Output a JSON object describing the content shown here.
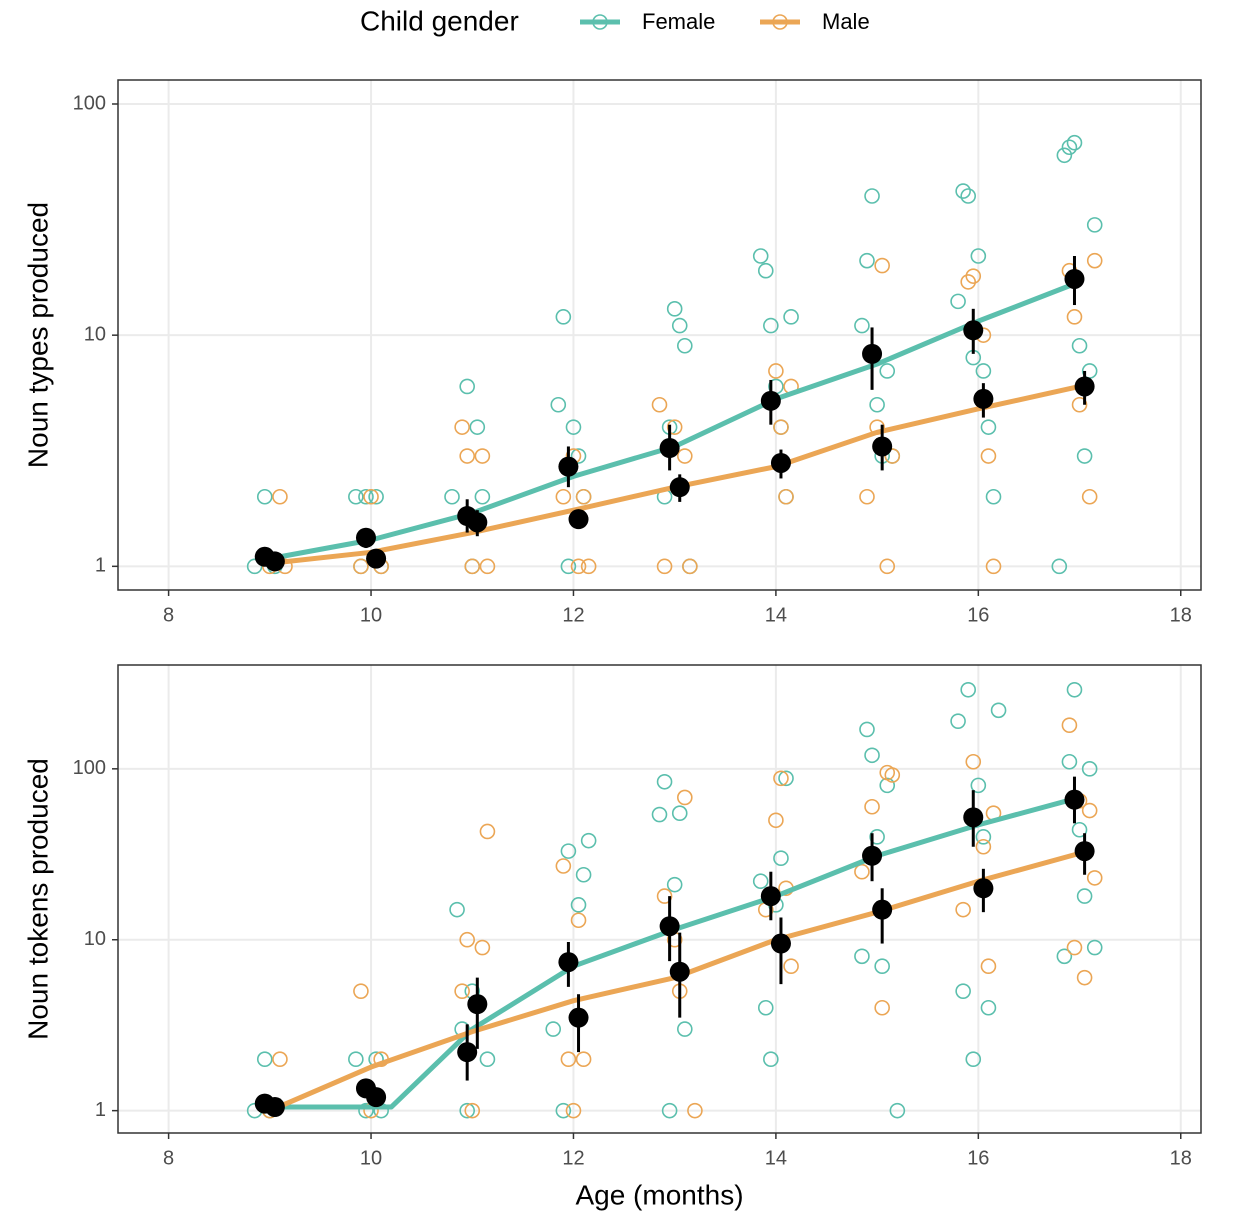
{
  "chart_data": [
    {
      "type": "scatter",
      "legend_title": "Child gender",
      "ylabel": "Noun types produced",
      "log_y": true,
      "grid": true,
      "xlim": [
        7.5,
        18.2
      ],
      "xticks": [
        8,
        10,
        12,
        14,
        16,
        18
      ],
      "ylim": [
        0.79,
        127
      ],
      "yticks": [
        1,
        10,
        100
      ],
      "series": [
        {
          "name": "Female",
          "color": "#5bbfad",
          "x": [
            8.85,
            8.95,
            9.05,
            9.85,
            9.9,
            9.95,
            10.05,
            10.1,
            10.8,
            10.95,
            11.0,
            11.05,
            11.1,
            11.85,
            11.9,
            11.95,
            12.0,
            12.05,
            12.1,
            12.9,
            12.95,
            13.0,
            13.05,
            13.1,
            13.15,
            13.85,
            13.9,
            13.95,
            14.0,
            14.05,
            14.1,
            14.15,
            14.85,
            14.9,
            14.95,
            15.0,
            15.05,
            15.1,
            15.15,
            15.8,
            15.85,
            15.9,
            15.95,
            16.0,
            16.05,
            16.1,
            16.15,
            16.8,
            16.85,
            16.9,
            16.95,
            17.0,
            17.05,
            17.1,
            17.15
          ],
          "values": [
            1,
            2,
            1,
            2,
            1,
            2,
            2,
            1,
            2,
            6,
            1,
            4,
            2,
            5,
            12,
            1,
            4,
            3,
            2,
            2,
            4,
            13,
            11,
            9,
            1,
            22,
            19,
            11,
            6,
            4,
            2,
            12,
            11,
            21,
            40,
            5,
            3,
            7,
            3,
            14,
            42,
            40,
            8,
            22,
            7,
            4,
            2,
            1,
            60,
            65,
            68,
            9,
            3,
            7,
            30
          ],
          "fit_x": [
            9,
            10,
            11,
            12,
            13,
            14,
            15,
            16,
            17
          ],
          "fit_values": [
            1.08,
            1.3,
            1.7,
            2.45,
            3.3,
            5.3,
            7.5,
            11.5,
            17
          ],
          "mean_x": [
            8.95,
            9.95,
            10.95,
            11.95,
            12.95,
            13.95,
            14.95,
            15.95,
            16.95
          ],
          "mean_values": [
            1.1,
            1.33,
            1.65,
            2.7,
            3.25,
            5.2,
            8.3,
            10.5,
            17.5
          ],
          "mean_low": [
            1.0,
            1.2,
            1.4,
            2.2,
            2.6,
            4.1,
            5.8,
            8.3,
            13.5
          ],
          "mean_high": [
            1.2,
            1.45,
            1.95,
            3.3,
            4.1,
            6.4,
            10.8,
            13,
            22
          ]
        },
        {
          "name": "Male",
          "color": "#eba655",
          "x": [
            9.0,
            9.1,
            9.15,
            9.9,
            10.0,
            10.1,
            10.9,
            10.95,
            11.0,
            11.1,
            11.15,
            11.9,
            12.0,
            12.05,
            12.1,
            12.15,
            12.85,
            12.9,
            13.0,
            13.1,
            13.15,
            14.0,
            14.05,
            14.1,
            14.15,
            14.9,
            15.0,
            15.05,
            15.1,
            15.15,
            15.9,
            15.95,
            16.05,
            16.1,
            16.15,
            16.9,
            16.95,
            17.0,
            17.05,
            17.1,
            17.15
          ],
          "values": [
            1,
            2,
            1,
            1,
            2,
            1,
            4,
            3,
            1,
            3,
            1,
            2,
            3,
            1,
            2,
            1,
            5,
            1,
            4,
            3,
            1,
            7,
            4,
            2,
            6,
            2,
            4,
            20,
            1,
            3,
            17,
            18,
            10,
            3,
            1,
            19,
            12,
            5,
            6,
            2,
            21
          ],
          "fit_x": [
            9,
            10,
            11,
            12,
            13,
            14,
            15,
            16,
            17
          ],
          "fit_values": [
            1.03,
            1.15,
            1.4,
            1.75,
            2.2,
            2.7,
            3.8,
            4.8,
            6.0
          ],
          "mean_x": [
            9.05,
            10.05,
            11.05,
            12.05,
            13.05,
            14.05,
            15.05,
            16.05,
            17.05
          ],
          "mean_values": [
            1.05,
            1.08,
            1.55,
            1.6,
            2.2,
            2.8,
            3.3,
            5.3,
            6.0
          ],
          "mean_low": [
            1.0,
            1.02,
            1.35,
            1.45,
            1.9,
            2.4,
            2.6,
            4.4,
            5
          ],
          "mean_high": [
            1.1,
            1.15,
            1.75,
            1.75,
            2.5,
            3.2,
            4.1,
            6.2,
            7
          ]
        }
      ]
    },
    {
      "type": "scatter",
      "ylabel": "Noun tokens produced",
      "xlabel": "Age (months)",
      "log_y": true,
      "grid": true,
      "xlim": [
        7.5,
        18.2
      ],
      "xticks": [
        8,
        10,
        12,
        14,
        16,
        18
      ],
      "ylim": [
        0.74,
        405
      ],
      "yticks": [
        1,
        10,
        100
      ],
      "series": [
        {
          "name": "Female",
          "color": "#5bbfad",
          "x": [
            8.85,
            8.95,
            9.0,
            9.85,
            9.95,
            10.05,
            10.1,
            10.85,
            10.9,
            10.95,
            11.0,
            11.15,
            11.8,
            11.9,
            11.95,
            12.05,
            12.1,
            12.15,
            12.85,
            12.9,
            12.95,
            13.0,
            13.05,
            13.1,
            13.85,
            13.9,
            13.95,
            14.0,
            14.05,
            14.1,
            14.85,
            14.9,
            14.95,
            15.0,
            15.05,
            15.1,
            15.2,
            15.8,
            15.85,
            15.9,
            15.95,
            16.0,
            16.05,
            16.1,
            16.2,
            16.85,
            16.9,
            16.95,
            17.0,
            17.05,
            17.1,
            17.15
          ],
          "values": [
            1,
            2,
            1,
            2,
            1,
            2,
            1,
            15,
            3,
            1,
            5,
            2,
            3,
            1,
            33,
            16,
            24,
            38,
            54,
            84,
            1,
            21,
            55,
            3,
            22,
            4,
            2,
            16,
            30,
            88,
            8,
            170,
            120,
            40,
            7,
            80,
            1,
            190,
            5,
            290,
            2,
            80,
            40,
            4,
            220,
            8,
            110,
            290,
            44,
            18,
            100,
            9
          ],
          "fit_x": [
            9,
            10,
            10.2,
            11,
            12,
            13,
            14,
            15,
            16,
            17
          ],
          "fit_values": [
            1.05,
            1.05,
            1.05,
            3.0,
            7,
            11.5,
            18,
            31,
            47,
            68
          ],
          "mean_x": [
            8.95,
            9.95,
            10.95,
            11.95,
            12.95,
            13.95,
            14.95,
            15.95,
            16.95
          ],
          "mean_values": [
            1.1,
            1.35,
            2.2,
            7.4,
            12,
            18,
            31,
            52,
            66
          ],
          "mean_low": [
            1.0,
            1.2,
            1.5,
            5.3,
            7.5,
            13,
            22,
            35,
            48
          ],
          "mean_high": [
            1.2,
            1.5,
            3.2,
            9.7,
            18,
            25,
            42,
            75,
            90
          ]
        },
        {
          "name": "Male",
          "color": "#eba655",
          "x": [
            9.0,
            9.1,
            9.9,
            10.0,
            10.1,
            10.9,
            10.95,
            11.0,
            11.1,
            11.15,
            11.9,
            11.95,
            12.0,
            12.05,
            12.1,
            12.9,
            13.0,
            13.05,
            13.1,
            13.2,
            13.9,
            14.0,
            14.05,
            14.1,
            14.15,
            14.85,
            14.95,
            15.05,
            15.1,
            15.15,
            15.85,
            15.95,
            16.05,
            16.1,
            16.15,
            16.9,
            16.95,
            17.0,
            17.05,
            17.1,
            17.15
          ],
          "values": [
            1,
            2,
            5,
            1,
            2,
            5,
            10,
            1,
            9,
            43,
            27,
            2,
            1,
            13,
            2,
            18,
            10,
            5,
            68,
            1,
            15,
            50,
            88,
            20,
            7,
            25,
            60,
            4,
            95,
            92,
            15,
            110,
            35,
            7,
            55,
            180,
            9,
            65,
            6,
            57,
            23
          ],
          "fit_x": [
            9,
            10,
            11,
            12,
            13,
            14,
            15,
            16,
            17
          ],
          "fit_values": [
            1.0,
            1.8,
            2.9,
            4.4,
            6,
            10,
            14.5,
            22,
            32
          ],
          "mean_x": [
            9.05,
            10.05,
            11.05,
            12.05,
            13.05,
            14.05,
            15.05,
            16.05,
            17.05
          ],
          "mean_values": [
            1.05,
            1.2,
            4.2,
            3.5,
            6.5,
            9.5,
            15,
            20,
            33
          ],
          "mean_low": [
            1.0,
            1.1,
            2.3,
            2.2,
            3.5,
            5.5,
            9.5,
            14.5,
            24
          ],
          "mean_high": [
            1.1,
            1.35,
            6,
            4.8,
            11,
            13.5,
            20,
            26,
            42
          ]
        }
      ]
    }
  ]
}
